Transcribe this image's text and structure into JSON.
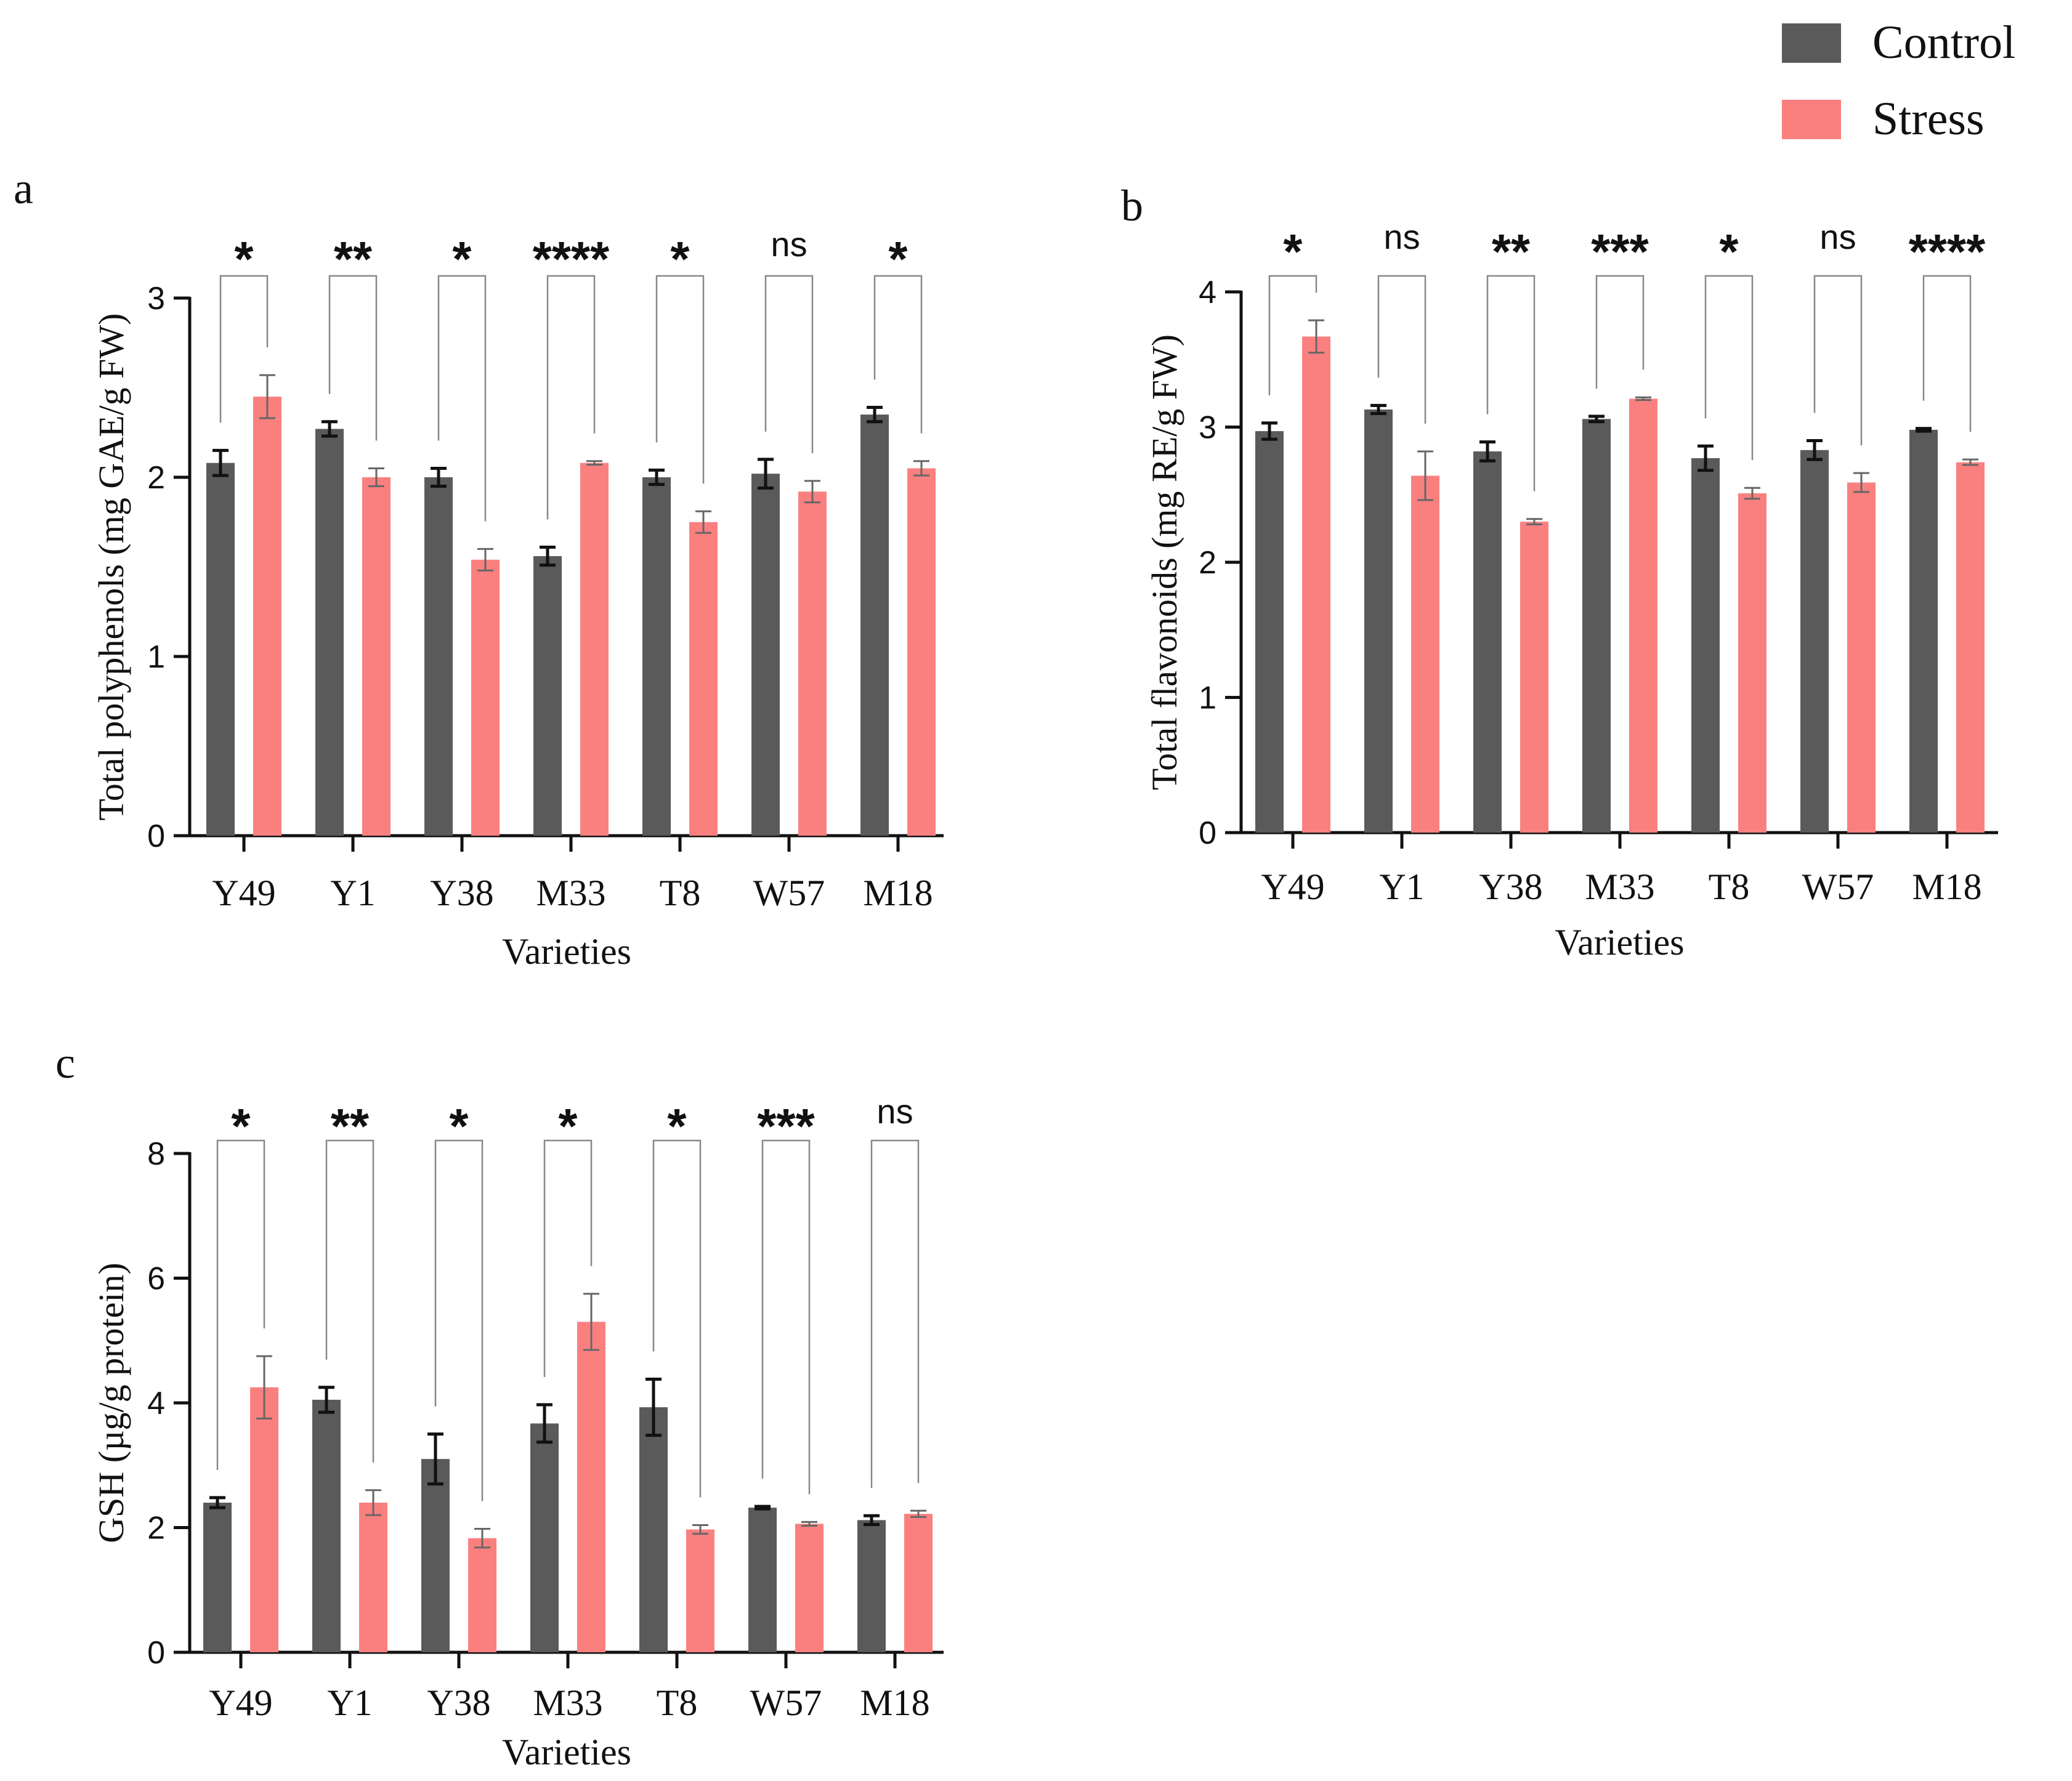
{
  "legend": {
    "items": [
      {
        "label": "Control",
        "color": "#5a5a5a"
      },
      {
        "label": "Stress",
        "color": "#fa8080"
      }
    ]
  },
  "chart_data": [
    {
      "panel": "a",
      "type": "bar",
      "categories": [
        "Y49",
        "Y1",
        "Y38",
        "M33",
        "T8",
        "W57",
        "M18"
      ],
      "series": [
        {
          "name": "Control",
          "values": [
            2.08,
            2.27,
            2.0,
            1.56,
            2.0,
            2.02,
            2.35
          ],
          "errors": [
            0.07,
            0.04,
            0.05,
            0.05,
            0.04,
            0.08,
            0.04
          ]
        },
        {
          "name": "Stress",
          "values": [
            2.45,
            2.0,
            1.54,
            2.08,
            1.75,
            1.92,
            2.05
          ],
          "errors": [
            0.12,
            0.05,
            0.06,
            0.01,
            0.06,
            0.06,
            0.04
          ]
        }
      ],
      "significance": [
        "*",
        "**",
        "*",
        "****",
        "*",
        "ns",
        "*"
      ],
      "xlabel": "Varieties",
      "ylabel": "Total polyphenols (mg GAE/g FW)",
      "ylim": [
        0,
        3
      ],
      "yticks": [
        "0",
        "1",
        "2",
        "3"
      ]
    },
    {
      "panel": "b",
      "type": "bar",
      "categories": [
        "Y49",
        "Y1",
        "Y38",
        "M33",
        "T8",
        "W57",
        "M18"
      ],
      "series": [
        {
          "name": "Control",
          "values": [
            2.97,
            3.13,
            2.82,
            3.06,
            2.77,
            2.83,
            2.98
          ],
          "errors": [
            0.06,
            0.03,
            0.07,
            0.02,
            0.09,
            0.07,
            0.01
          ]
        },
        {
          "name": "Stress",
          "values": [
            3.67,
            2.64,
            2.3,
            3.21,
            2.51,
            2.59,
            2.74
          ],
          "errors": [
            0.12,
            0.18,
            0.02,
            0.01,
            0.04,
            0.07,
            0.02
          ]
        }
      ],
      "significance": [
        "*",
        "ns",
        "**",
        "***",
        "*",
        "ns",
        "****"
      ],
      "xlabel": "Varieties",
      "ylabel": "Total flavonoids (mg RE/g FW)",
      "ylim": [
        0,
        4
      ],
      "yticks": [
        "0",
        "1",
        "2",
        "3",
        "4"
      ]
    },
    {
      "panel": "c",
      "type": "bar",
      "categories": [
        "Y49",
        "Y1",
        "Y38",
        "M33",
        "T8",
        "W57",
        "M18"
      ],
      "series": [
        {
          "name": "Control",
          "values": [
            2.4,
            4.05,
            3.1,
            3.67,
            3.93,
            2.32,
            2.12
          ],
          "errors": [
            0.08,
            0.2,
            0.4,
            0.3,
            0.45,
            0.02,
            0.07
          ]
        },
        {
          "name": "Stress",
          "values": [
            4.25,
            2.4,
            1.83,
            5.3,
            1.97,
            2.06,
            2.22
          ],
          "errors": [
            0.5,
            0.2,
            0.15,
            0.45,
            0.07,
            0.03,
            0.05
          ]
        }
      ],
      "significance": [
        "*",
        "**",
        "*",
        "*",
        "*",
        "***",
        "ns"
      ],
      "xlabel": "Varieties",
      "ylabel": "GSH (µg/g protein)",
      "ylim": [
        0,
        8
      ],
      "yticks": [
        "0",
        "2",
        "4",
        "6",
        "8"
      ]
    }
  ]
}
